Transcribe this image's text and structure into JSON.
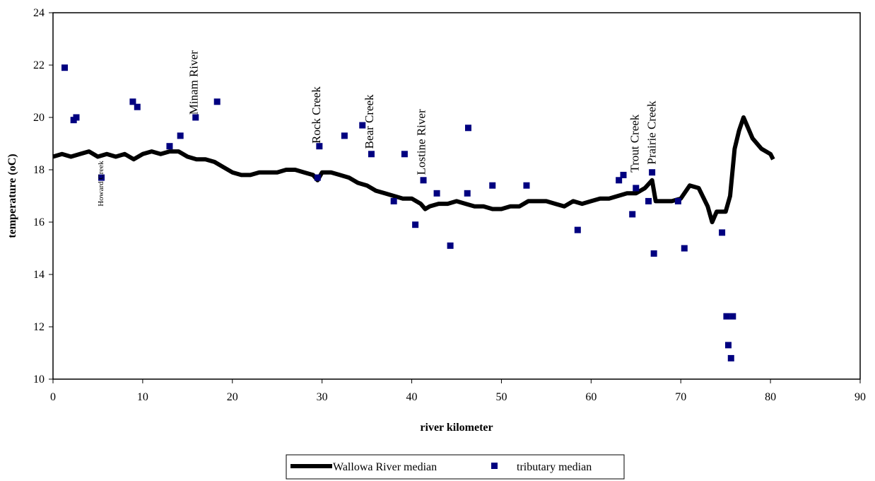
{
  "chart_data": {
    "type": "line",
    "title": "",
    "xlabel": "river kilometer",
    "ylabel": "temperature (oC)",
    "xlim": [
      0,
      90
    ],
    "ylim": [
      10,
      24
    ],
    "x_ticks": [
      0,
      10,
      20,
      30,
      40,
      50,
      60,
      70,
      80,
      90
    ],
    "y_ticks": [
      10,
      12,
      14,
      16,
      18,
      20,
      22,
      24
    ],
    "grid": false,
    "legend_position": "bottom",
    "colors": {
      "line": "#000000",
      "marker": "#000080"
    },
    "series": [
      {
        "name": "Wallowa River median",
        "type": "line",
        "x": [
          0,
          1,
          2,
          3,
          4,
          5,
          6,
          7,
          8,
          9,
          10,
          11,
          12,
          13,
          14,
          15,
          16,
          17,
          18,
          19,
          20,
          21,
          22,
          23,
          24,
          25,
          26,
          27,
          28,
          29,
          29.5,
          30,
          31,
          32,
          33,
          34,
          35,
          36,
          37,
          38,
          39,
          40,
          41,
          41.5,
          42,
          43,
          44,
          45,
          46,
          47,
          48,
          49,
          50,
          51,
          52,
          53,
          54,
          55,
          56,
          57,
          58,
          59,
          60,
          61,
          62,
          63,
          64,
          65,
          66,
          66.8,
          67.2,
          68,
          69,
          70,
          71,
          72,
          73,
          73.5,
          74,
          75,
          75.5,
          76,
          76.5,
          77,
          77.5,
          78,
          79,
          80,
          80.3
        ],
        "values": [
          18.5,
          18.6,
          18.5,
          18.6,
          18.7,
          18.5,
          18.6,
          18.5,
          18.6,
          18.4,
          18.6,
          18.7,
          18.6,
          18.7,
          18.7,
          18.5,
          18.4,
          18.4,
          18.3,
          18.1,
          17.9,
          17.8,
          17.8,
          17.9,
          17.9,
          17.9,
          18.0,
          18.0,
          17.9,
          17.8,
          17.6,
          17.9,
          17.9,
          17.8,
          17.7,
          17.5,
          17.4,
          17.2,
          17.1,
          17.0,
          16.9,
          16.9,
          16.7,
          16.5,
          16.6,
          16.7,
          16.7,
          16.8,
          16.7,
          16.6,
          16.6,
          16.5,
          16.5,
          16.6,
          16.6,
          16.8,
          16.8,
          16.8,
          16.7,
          16.6,
          16.8,
          16.7,
          16.8,
          16.9,
          16.9,
          17.0,
          17.1,
          17.1,
          17.3,
          17.6,
          16.8,
          16.8,
          16.8,
          16.9,
          17.4,
          17.3,
          16.6,
          16.0,
          16.4,
          16.4,
          17.0,
          18.8,
          19.5,
          20.0,
          19.6,
          19.2,
          18.8,
          18.6,
          18.4
        ]
      },
      {
        "name": "tributary median",
        "type": "scatter",
        "x": [
          1.3,
          2.3,
          2.6,
          5.4,
          8.9,
          9.4,
          13.0,
          14.2,
          15.9,
          18.3,
          29.5,
          29.7,
          32.5,
          34.5,
          35.5,
          38.0,
          39.2,
          40.4,
          41.3,
          42.8,
          44.3,
          46.2,
          46.3,
          49.0,
          52.8,
          58.5,
          63.1,
          63.6,
          64.6,
          65.0,
          66.4,
          66.8,
          67.0,
          69.7,
          70.4,
          74.6,
          75.1,
          75.3,
          75.6,
          75.8
        ],
        "values": [
          21.9,
          19.9,
          20.0,
          17.7,
          20.6,
          20.4,
          18.9,
          19.3,
          20.0,
          20.6,
          17.7,
          18.9,
          19.3,
          19.7,
          18.6,
          16.8,
          18.6,
          15.9,
          17.6,
          17.1,
          15.1,
          17.1,
          19.6,
          17.4,
          17.4,
          15.7,
          17.6,
          17.8,
          16.3,
          17.3,
          16.8,
          17.9,
          14.8,
          16.8,
          15.0,
          15.6,
          12.4,
          11.3,
          10.8,
          12.4
        ]
      }
    ],
    "annotations": [
      {
        "text": "Howard Creek",
        "x": 5.6,
        "y": 16.6,
        "size": "small"
      },
      {
        "text": "Minam River",
        "x": 16.1,
        "y": 20.1,
        "size": "large"
      },
      {
        "text": "Rock Creek",
        "x": 29.8,
        "y": 19.0,
        "size": "large"
      },
      {
        "text": "Bear Creek",
        "x": 35.7,
        "y": 18.8,
        "size": "large"
      },
      {
        "text": "Lostine River",
        "x": 41.5,
        "y": 17.8,
        "size": "large"
      },
      {
        "text": "Trout Creek",
        "x": 65.3,
        "y": 17.9,
        "size": "large"
      },
      {
        "text": "Prairie Creek",
        "x": 67.2,
        "y": 18.2,
        "size": "large"
      }
    ]
  }
}
